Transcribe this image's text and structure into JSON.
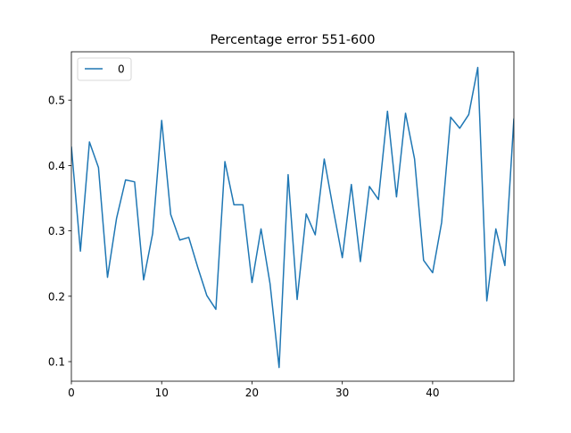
{
  "chart_data": {
    "type": "line",
    "title": "Percentage error 551-600",
    "xlabel": "",
    "ylabel": "",
    "xlim": [
      0,
      49
    ],
    "ylim": [
      0.07,
      0.574
    ],
    "x_ticks": [
      0,
      10,
      20,
      30,
      40
    ],
    "y_ticks": [
      0.1,
      0.2,
      0.3,
      0.4,
      0.5
    ],
    "x_tick_labels": [
      "0",
      "10",
      "20",
      "30",
      "40"
    ],
    "y_tick_labels": [
      "0.1",
      "0.2",
      "0.3",
      "0.4",
      "0.5"
    ],
    "grid": false,
    "legend_position": "top-left",
    "series": [
      {
        "name": "0",
        "color": "#1f77b4",
        "x": [
          0,
          1,
          2,
          3,
          4,
          5,
          6,
          7,
          8,
          9,
          10,
          11,
          12,
          13,
          14,
          15,
          16,
          17,
          18,
          19,
          20,
          21,
          22,
          23,
          24,
          25,
          26,
          27,
          28,
          29,
          30,
          31,
          32,
          33,
          34,
          35,
          36,
          37,
          38,
          39,
          40,
          41,
          42,
          43,
          44,
          45,
          46,
          47,
          48,
          49
        ],
        "values": [
          0.429,
          0.269,
          0.436,
          0.397,
          0.229,
          0.319,
          0.378,
          0.375,
          0.225,
          0.296,
          0.469,
          0.325,
          0.286,
          0.29,
          0.244,
          0.201,
          0.18,
          0.406,
          0.34,
          0.34,
          0.221,
          0.303,
          0.219,
          0.091,
          0.386,
          0.195,
          0.326,
          0.294,
          0.41,
          0.333,
          0.259,
          0.371,
          0.253,
          0.368,
          0.348,
          0.483,
          0.352,
          0.48,
          0.41,
          0.255,
          0.236,
          0.313,
          0.474,
          0.457,
          0.478,
          0.55,
          0.193,
          0.303,
          0.247,
          0.472
        ]
      }
    ]
  }
}
